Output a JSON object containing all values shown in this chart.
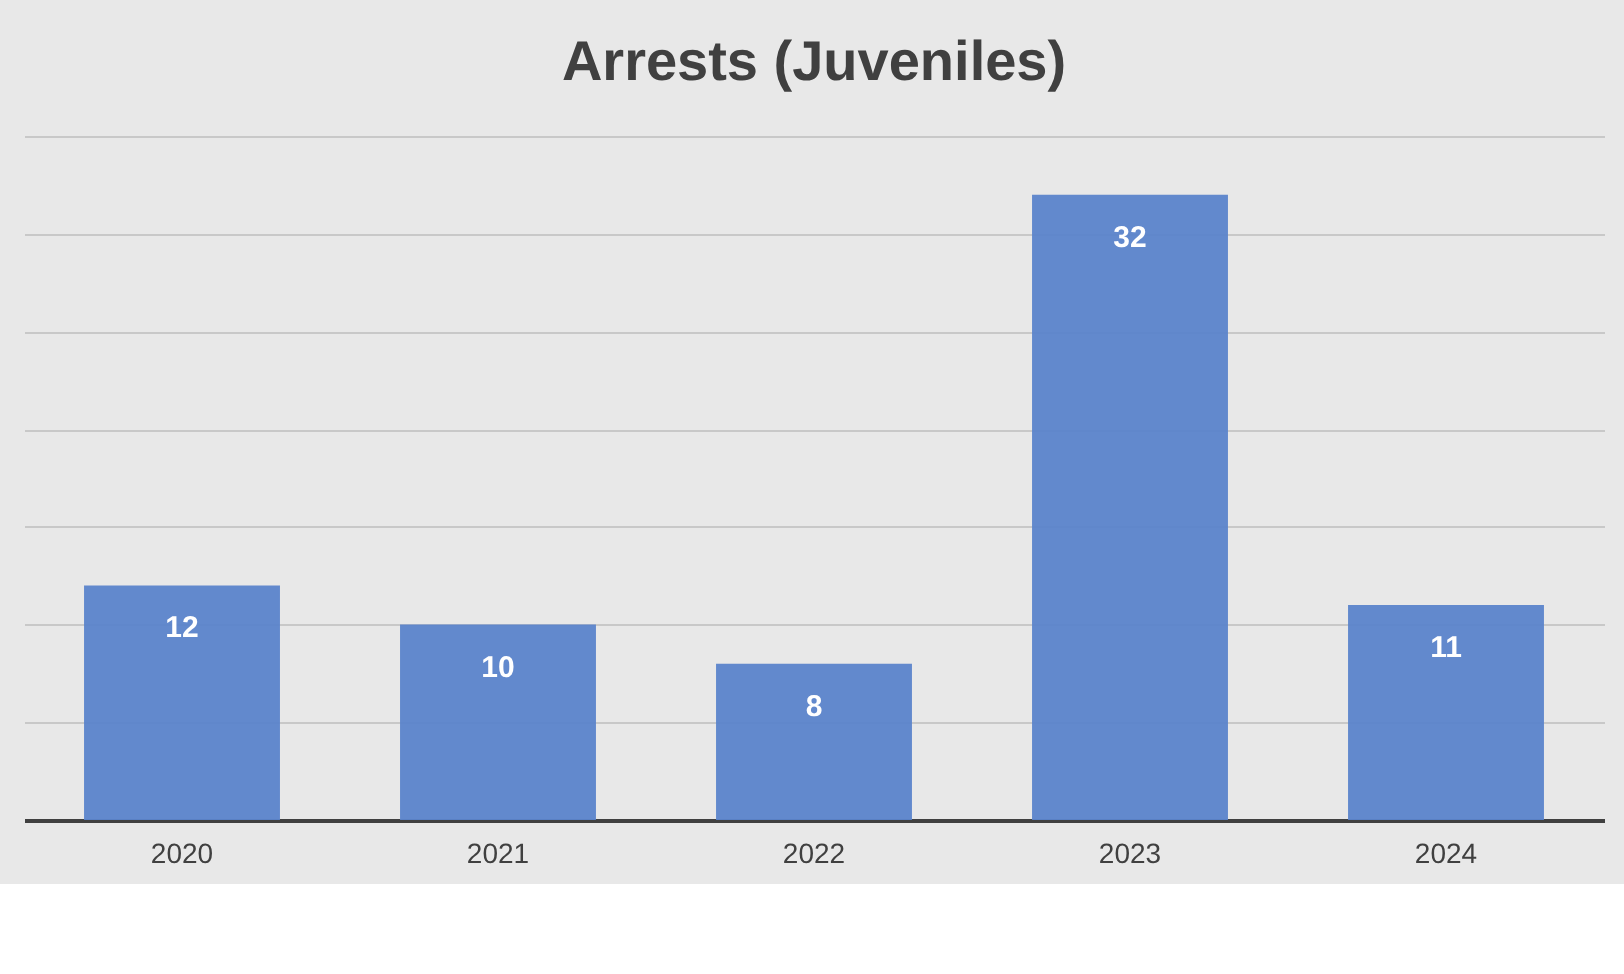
{
  "chart_data": {
    "type": "bar",
    "title": "Arrests (Juveniles)",
    "categories": [
      "2020",
      "2021",
      "2022",
      "2023",
      "2024"
    ],
    "values": [
      12,
      10,
      8,
      32,
      11
    ],
    "color": "#5b84cb",
    "ylim": [
      0,
      35
    ],
    "yticks": [
      {
        "value": 0,
        "label": null
      },
      {
        "value": 5,
        "label": null
      },
      {
        "value": 10,
        "label": null
      },
      {
        "value": 15,
        "label": null
      },
      {
        "value": 20,
        "label": null
      },
      {
        "value": 25,
        "label": null
      },
      {
        "value": 30,
        "label": null
      },
      {
        "value": 35,
        "label": null
      }
    ],
    "grid": "y",
    "data_labels": true,
    "tick_labels": "x"
  }
}
